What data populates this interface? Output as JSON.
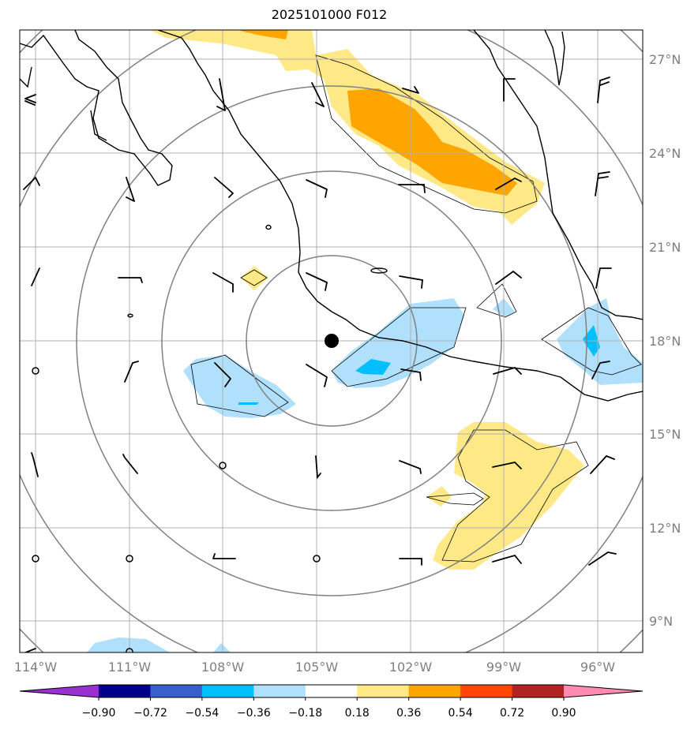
{
  "title": "2025101000 F012",
  "map": {
    "lon_range": [
      -114.5,
      -94.5
    ],
    "lat_range": [
      8,
      28
    ],
    "lat_labels": [
      "27°N",
      "24°N",
      "21°N",
      "18°N",
      "15°N",
      "12°N",
      "9°N"
    ],
    "lat_values": [
      27,
      24,
      21,
      18,
      15,
      12,
      9
    ],
    "lon_labels": [
      "114°W",
      "111°W",
      "108°W",
      "105°W",
      "102°W",
      "99°W",
      "96°W"
    ],
    "lon_values": [
      -114,
      -111,
      -108,
      -105,
      -102,
      -99,
      -96
    ],
    "center_marker": {
      "lon": -104.6,
      "lat": 18.0
    },
    "range_ring_count": 5
  },
  "colorbar": {
    "tick_labels": [
      "−0.90",
      "−0.72",
      "−0.54",
      "−0.36",
      "−0.18",
      "0.18",
      "0.36",
      "0.54",
      "0.72",
      "0.90"
    ],
    "colors": [
      "#9b30d0",
      "#00008b",
      "#3a5fcd",
      "#00bfff",
      "#b0e0fb",
      "#ffffff",
      "#ffe987",
      "#ffa500",
      "#ff4500",
      "#b22222",
      "#ff8bb0"
    ]
  },
  "colors": {
    "grid": "#b0b0b0",
    "ring": "#808080",
    "coast": "#000000",
    "light_blue": "#b0e0fb",
    "mid_blue": "#00bfff",
    "yellow": "#ffe987",
    "orange": "#ffa500"
  }
}
